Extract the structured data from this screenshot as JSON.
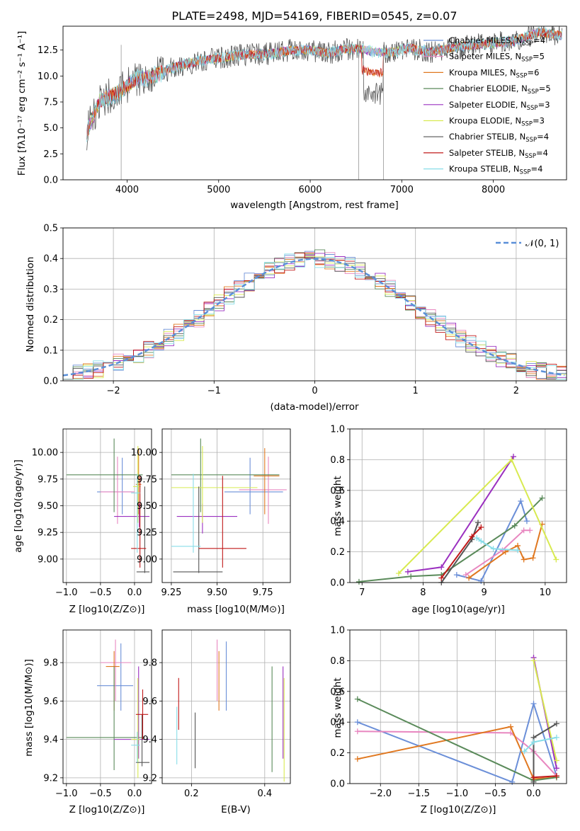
{
  "page_title": "PLATE=2498, MJD=54169, FIBERID=0545, z=0.07",
  "models": [
    {
      "name": "Chabrier MILES, N",
      "nssp": "=4",
      "color": "#6b8fd8"
    },
    {
      "name": "Salpeter MILES, N",
      "nssp": "=5",
      "color": "#e887c0"
    },
    {
      "name": "Kroupa MILES, N",
      "nssp": "=6",
      "color": "#e07820"
    },
    {
      "name": "Chabrier ELODIE, N",
      "nssp": "=5",
      "color": "#5a8a5a"
    },
    {
      "name": "Salpeter ELODIE, N",
      "nssp": "=3",
      "color": "#9b30c0"
    },
    {
      "name": "Kroupa ELODIE, N",
      "nssp": "=3",
      "color": "#d8ea50"
    },
    {
      "name": "Chabrier STELIB, N",
      "nssp": "=4",
      "color": "#555555"
    },
    {
      "name": "Salpeter STELIB, N",
      "nssp": "=4",
      "color": "#c01818"
    },
    {
      "name": "Kroupa STELIB, N",
      "nssp": "=4",
      "color": "#88dde8"
    }
  ],
  "nssp_sub": "SSP",
  "chart_data": [
    {
      "id": "spectrum",
      "type": "line",
      "title": "PLATE=2498, MJD=54169, FIBERID=0545, z=0.07",
      "xlabel": "wavelength [Angstrom, rest frame]",
      "ylabel": "Flux [fλ10⁻¹⁷ erg cm⁻² s⁻¹ A⁻¹]",
      "xlim": [
        3300,
        8800
      ],
      "ylim": [
        0,
        14.8
      ],
      "xticks": [
        4000,
        5000,
        6000,
        7000,
        8000
      ],
      "yticks": [
        0.0,
        2.5,
        5.0,
        7.5,
        10.0,
        12.5
      ],
      "series": [
        {
          "x": [
            3560,
            3700,
            3900,
            4100,
            4300,
            4500,
            4800,
            5000,
            5200,
            5500,
            5800,
            6000,
            6200,
            6400,
            6550,
            6700,
            6900,
            7100,
            7300,
            7600,
            7900,
            8200,
            8500,
            8750
          ],
          "y": [
            4.6,
            7.6,
            8.4,
            9.7,
            10.0,
            10.8,
            11.5,
            11.7,
            12.0,
            12.1,
            12.5,
            12.5,
            12.2,
            12.6,
            12.6,
            12.3,
            12.3,
            12.7,
            12.3,
            12.8,
            13.1,
            13.3,
            14.2,
            13.9
          ]
        }
      ]
    },
    {
      "id": "residuals",
      "type": "line",
      "xlabel": "(data-model)/error",
      "ylabel": "Normed distribution",
      "xlim": [
        -2.5,
        2.5
      ],
      "ylim": [
        0,
        0.5
      ],
      "xticks": [
        -2,
        -1,
        0,
        1,
        2
      ],
      "yticks": [
        0.0,
        0.1,
        0.2,
        0.3,
        0.4,
        0.5
      ],
      "legend": "𝒩(0, 1)"
    },
    {
      "id": "age-vs-Z",
      "type": "scatter",
      "xlabel": "Z [log10(Z/Z⊙)]",
      "ylabel": "age  [log10(age/yr)]",
      "xlim": [
        -1.05,
        0.25
      ],
      "ylim": [
        8.78,
        10.22
      ],
      "xticks": [
        -1.0,
        -0.5,
        0.0
      ],
      "yticks": [
        9.0,
        9.25,
        9.5,
        9.75,
        10.0
      ],
      "points": [
        {
          "m": 0,
          "x": -0.18,
          "y": 9.63,
          "ex": [
            -0.55,
            -0.03
          ],
          "ey": [
            9.42,
            9.95
          ]
        },
        {
          "m": 1,
          "x": -0.25,
          "y": 9.63,
          "ex": [
            -0.5,
            0.0
          ],
          "ey": [
            9.33,
            9.96
          ]
        },
        {
          "m": 2,
          "x": 0.06,
          "y": 9.7,
          "ex": [
            0.02,
            0.1
          ],
          "ey": [
            9.42,
            10.04
          ]
        },
        {
          "m": 3,
          "x": -0.3,
          "y": 9.79,
          "ex": [
            -1.0,
            0.12
          ],
          "ey": [
            9.44,
            10.13
          ]
        },
        {
          "m": 4,
          "x": 0.07,
          "y": 9.4,
          "ex": [
            -0.3,
            0.22
          ],
          "ey": [
            9.3,
            9.52
          ]
        },
        {
          "m": 5,
          "x": 0.05,
          "y": 9.68,
          "ex": [
            -0.02,
            0.09
          ],
          "ey": [
            9.34,
            10.06
          ]
        },
        {
          "m": 6,
          "x": 0.15,
          "y": 8.88,
          "ex": [
            0.03,
            0.22
          ],
          "ey": [
            8.87,
            9.68
          ]
        },
        {
          "m": 7,
          "x": 0.08,
          "y": 9.1,
          "ex": [
            -0.05,
            0.17
          ],
          "ey": [
            8.92,
            9.78
          ]
        },
        {
          "m": 8,
          "x": 0.04,
          "y": 9.62,
          "ex": [
            -0.05,
            0.08
          ],
          "ey": [
            9.06,
            9.8
          ]
        }
      ]
    },
    {
      "id": "age-vs-mass",
      "type": "scatter",
      "xlabel": "mass [log10(M/M⊙)]",
      "ylabel": "",
      "xlim": [
        9.2,
        9.9
      ],
      "ylim": [
        8.78,
        10.22
      ],
      "xticks": [
        9.25,
        9.5,
        9.75
      ],
      "yticks": [
        9.0,
        9.25,
        9.5,
        9.75,
        10.0
      ],
      "points": [
        {
          "m": 0,
          "x": 9.68,
          "y": 9.63,
          "ex": [
            9.54,
            9.86
          ],
          "ey": [
            9.42,
            9.95
          ]
        },
        {
          "m": 1,
          "x": 9.78,
          "y": 9.65,
          "ex": [
            9.62,
            9.88
          ],
          "ey": [
            9.33,
            9.96
          ]
        },
        {
          "m": 2,
          "x": 9.76,
          "y": 9.78,
          "ex": [
            9.7,
            9.84
          ],
          "ey": [
            9.42,
            10.04
          ]
        },
        {
          "m": 3,
          "x": 9.41,
          "y": 9.79,
          "ex": [
            9.25,
            9.84
          ],
          "ey": [
            9.44,
            10.13
          ]
        },
        {
          "m": 4,
          "x": 9.42,
          "y": 9.4,
          "ex": [
            9.28,
            9.61
          ],
          "ey": [
            9.24,
            9.52
          ]
        },
        {
          "m": 5,
          "x": 9.42,
          "y": 9.67,
          "ex": [
            9.25,
            9.72
          ],
          "ey": [
            9.34,
            10.06
          ]
        },
        {
          "m": 6,
          "x": 9.4,
          "y": 8.88,
          "ex": [
            9.26,
            9.53
          ],
          "ey": [
            8.87,
            9.68
          ]
        },
        {
          "m": 7,
          "x": 9.53,
          "y": 9.1,
          "ex": [
            9.4,
            9.66
          ],
          "ey": [
            8.92,
            9.78
          ]
        },
        {
          "m": 8,
          "x": 9.37,
          "y": 9.12,
          "ex": [
            9.25,
            9.41
          ],
          "ey": [
            9.06,
            9.8
          ]
        }
      ]
    },
    {
      "id": "weight-vs-age",
      "type": "line",
      "xlabel": "age  [log10(age/yr)]",
      "ylabel": "mass weight",
      "xlim": [
        6.8,
        10.35
      ],
      "ylim": [
        0,
        1.0
      ],
      "xticks": [
        7,
        8,
        9,
        10
      ],
      "yticks": [
        0.0,
        0.2,
        0.4,
        0.6,
        0.8,
        1.0
      ],
      "series": [
        {
          "m": 0,
          "x": [
            8.55,
            8.95,
            9.6,
            9.7
          ],
          "y": [
            0.05,
            0.01,
            0.53,
            0.4
          ]
        },
        {
          "m": 1,
          "x": [
            8.7,
            9.3,
            9.65,
            9.75
          ],
          "y": [
            0.05,
            0.21,
            0.34,
            0.34
          ]
        },
        {
          "m": 2,
          "x": [
            8.75,
            9.35,
            9.55,
            9.65,
            9.8,
            9.95
          ],
          "y": [
            0.03,
            0.2,
            0.24,
            0.15,
            0.16,
            0.38
          ]
        },
        {
          "m": 3,
          "x": [
            6.95,
            7.8,
            8.3,
            9.5,
            9.95
          ],
          "y": [
            0.005,
            0.04,
            0.05,
            0.37,
            0.55
          ]
        },
        {
          "m": 4,
          "x": [
            7.75,
            8.3,
            9.48
          ],
          "y": [
            0.07,
            0.1,
            0.82
          ]
        },
        {
          "m": 5,
          "x": [
            7.6,
            9.45,
            10.18
          ],
          "y": [
            0.06,
            0.8,
            0.15
          ]
        },
        {
          "m": 6,
          "x": [
            8.3,
            8.8,
            8.9
          ],
          "y": [
            0.0,
            0.28,
            0.39
          ]
        },
        {
          "m": 7,
          "x": [
            8.3,
            8.8,
            8.95
          ],
          "y": [
            0.03,
            0.3,
            0.36
          ]
        },
        {
          "m": 8,
          "x": [
            8.88,
            8.95,
            9.15,
            9.55
          ],
          "y": [
            0.29,
            0.27,
            0.22,
            0.21
          ]
        }
      ]
    },
    {
      "id": "mass-vs-Z",
      "type": "scatter",
      "xlabel": "Z [log10(Z/Z⊙)]",
      "ylabel": "mass [log10(M/M⊙)]",
      "xlim": [
        -1.05,
        0.25
      ],
      "ylim": [
        9.17,
        9.97
      ],
      "xticks": [
        -1.0,
        -0.5,
        0.0
      ],
      "yticks": [
        9.2,
        9.4,
        9.6,
        9.8
      ],
      "points": [
        {
          "m": 0,
          "x": -0.2,
          "y": 9.68,
          "ex": [
            -0.55,
            -0.02
          ],
          "ey": [
            9.55,
            9.9
          ]
        },
        {
          "m": 1,
          "x": -0.28,
          "y": 9.8,
          "ex": [
            -0.5,
            -0.05
          ],
          "ey": [
            9.6,
            9.92
          ]
        },
        {
          "m": 2,
          "x": -0.3,
          "y": 9.78,
          "ex": [
            -0.42,
            -0.22
          ],
          "ey": [
            9.55,
            9.86
          ]
        },
        {
          "m": 3,
          "x": -0.3,
          "y": 9.41,
          "ex": [
            -1.0,
            0.15
          ],
          "ey": [
            9.24,
            9.78
          ]
        },
        {
          "m": 4,
          "x": 0.06,
          "y": 9.4,
          "ex": [
            -0.3,
            0.22
          ],
          "ey": [
            9.3,
            9.78
          ]
        },
        {
          "m": 5,
          "x": 0.05,
          "y": 9.4,
          "ex": [
            -0.05,
            0.08
          ],
          "ey": [
            9.2,
            9.72
          ]
        },
        {
          "m": 6,
          "x": 0.11,
          "y": 9.28,
          "ex": [
            0.02,
            0.22
          ],
          "ey": [
            9.26,
            9.53
          ]
        },
        {
          "m": 7,
          "x": 0.12,
          "y": 9.53,
          "ex": [
            0.02,
            0.2
          ],
          "ey": [
            9.4,
            9.66
          ]
        },
        {
          "m": 8,
          "x": 0.04,
          "y": 9.37,
          "ex": [
            -0.05,
            0.08
          ],
          "ey": [
            9.28,
            9.44
          ]
        }
      ]
    },
    {
      "id": "mass-vs-EBV",
      "type": "scatter",
      "xlabel": "E(B-V)",
      "ylabel": "",
      "xlim": [
        0.12,
        0.47
      ],
      "ylim": [
        9.17,
        9.97
      ],
      "xticks": [
        0.2,
        0.4
      ],
      "yticks": [
        9.2,
        9.4,
        9.6,
        9.8
      ],
      "points": [
        {
          "m": 0,
          "x": 0.295,
          "y": 9.68,
          "ey": [
            9.55,
            9.91
          ]
        },
        {
          "m": 1,
          "x": 0.27,
          "y": 9.8,
          "ey": [
            9.6,
            9.92
          ]
        },
        {
          "m": 2,
          "x": 0.275,
          "y": 9.78,
          "ey": [
            9.55,
            9.86
          ]
        },
        {
          "m": 3,
          "x": 0.42,
          "y": 9.41,
          "ey": [
            9.23,
            9.78
          ]
        },
        {
          "m": 4,
          "x": 0.45,
          "y": 9.4,
          "ey": [
            9.3,
            9.78
          ]
        },
        {
          "m": 5,
          "x": 0.453,
          "y": 9.4,
          "ey": [
            9.18,
            9.72
          ]
        },
        {
          "m": 6,
          "x": 0.21,
          "y": 9.38,
          "ey": [
            9.25,
            9.54
          ]
        },
        {
          "m": 7,
          "x": 0.165,
          "y": 9.6,
          "ey": [
            9.45,
            9.72
          ]
        },
        {
          "m": 8,
          "x": 0.16,
          "y": 9.4,
          "ey": [
            9.27,
            9.57
          ]
        }
      ]
    },
    {
      "id": "weight-vs-Z",
      "type": "line",
      "xlabel": "Z [log10(Z/Z⊙)]",
      "ylabel": "mass weight",
      "xlim": [
        -2.4,
        0.43
      ],
      "ylim": [
        0,
        1.0
      ],
      "xticks": [
        -2.0,
        -1.5,
        -1.0,
        -0.5,
        0.0
      ],
      "yticks": [
        0.0,
        0.2,
        0.4,
        0.6,
        0.8,
        1.0
      ],
      "series": [
        {
          "m": 0,
          "x": [
            -2.3,
            -0.28,
            0.0,
            0.3
          ],
          "y": [
            0.4,
            0.01,
            0.52,
            0.05
          ]
        },
        {
          "m": 1,
          "x": [
            -2.3,
            -0.3,
            0.0,
            0.3
          ],
          "y": [
            0.34,
            0.33,
            0.21,
            0.05
          ]
        },
        {
          "m": 2,
          "x": [
            -2.3,
            -0.3,
            0.0,
            0.3
          ],
          "y": [
            0.16,
            0.37,
            0.03,
            0.04
          ]
        },
        {
          "m": 3,
          "x": [
            -2.3,
            0.0,
            0.3
          ],
          "y": [
            0.55,
            0.02,
            0.04
          ]
        },
        {
          "m": 4,
          "x": [
            0.0,
            0.3
          ],
          "y": [
            0.82,
            0.1
          ]
        },
        {
          "m": 5,
          "x": [
            0.0,
            0.3
          ],
          "y": [
            0.8,
            0.15
          ]
        },
        {
          "m": 6,
          "x": [
            0.0,
            0.0,
            0.3
          ],
          "y": [
            0.01,
            0.3,
            0.39
          ]
        },
        {
          "m": 7,
          "x": [
            0.0,
            0.3
          ],
          "y": [
            0.04,
            0.05
          ]
        },
        {
          "m": 8,
          "x": [
            -0.12,
            0.0,
            0.3
          ],
          "y": [
            0.21,
            0.27,
            0.3
          ]
        }
      ]
    }
  ]
}
